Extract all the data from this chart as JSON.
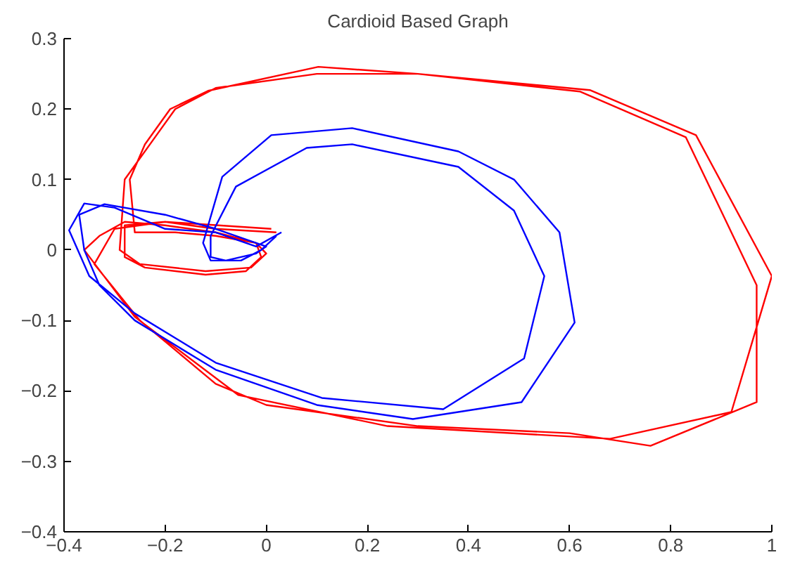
{
  "chart_data": {
    "type": "line",
    "title": "Cardioid Based Graph",
    "xlim": [
      -0.4,
      1
    ],
    "ylim": [
      -0.4,
      0.3
    ],
    "xticks": [
      -0.4,
      -0.2,
      0,
      0.2,
      0.4,
      0.6,
      0.8,
      1
    ],
    "yticks": [
      -0.4,
      -0.3,
      -0.2,
      -0.1,
      0,
      0.1,
      0.2,
      0.3
    ],
    "grid": false,
    "marker": "none",
    "line_style": "solid",
    "series": [
      {
        "color": "#ff0000",
        "x": [
          0.02,
          -0.1,
          -0.2,
          -0.28,
          -0.28,
          -0.24,
          -0.12,
          -0.04,
          -0.01,
          -0.02,
          -0.1,
          -0.18,
          -0.26,
          -0.27,
          -0.24,
          -0.19,
          -0.115,
          0.103,
          0.3,
          0.64,
          0.85,
          1.0,
          0.92,
          0.68,
          0.24,
          -0.055,
          -0.26,
          -0.36,
          -0.33,
          -0.28,
          -0.2,
          -0.1,
          -0.02,
          0,
          -0.03,
          -0.12,
          -0.25,
          -0.29,
          -0.28,
          -0.22,
          -0.18,
          -0.1,
          0.1,
          0.3,
          0.62,
          0.83,
          0.97,
          0.97,
          0.76,
          0.6,
          0.3,
          0,
          -0.1,
          -0.25,
          -0.34,
          -0.3,
          -0.2,
          0.01
        ],
        "values": [
          0.025,
          0.03,
          0.04,
          0.035,
          -0.01,
          -0.025,
          -0.035,
          -0.03,
          -0.01,
          0.01,
          0.02,
          0.025,
          0.025,
          0.1,
          0.15,
          0.2,
          0.226,
          0.26,
          0.25,
          0.227,
          0.163,
          -0.037,
          -0.23,
          -0.268,
          -0.25,
          -0.206,
          -0.095,
          0,
          0.02,
          0.04,
          0.035,
          0.025,
          0.01,
          -0.005,
          -0.025,
          -0.03,
          -0.02,
          0,
          0.1,
          0.16,
          0.2,
          0.23,
          0.25,
          0.25,
          0.225,
          0.16,
          -0.05,
          -0.216,
          -0.278,
          -0.26,
          -0.25,
          -0.22,
          -0.19,
          -0.1,
          -0.02,
          0.03,
          0.04,
          0.03
        ]
      },
      {
        "color": "#0000ff",
        "x": [
          0.03,
          -0.02,
          -0.1,
          -0.2,
          -0.3,
          -0.36,
          -0.39,
          -0.35,
          -0.26,
          -0.1,
          0.11,
          0.35,
          0.51,
          0.55,
          0.49,
          0.38,
          0.17,
          0.08,
          -0.06,
          -0.11,
          -0.11,
          -0.08,
          -0.02,
          0,
          -0.1,
          -0.2,
          -0.32,
          -0.37,
          -0.36,
          -0.33,
          -0.26,
          -0.1,
          0.1,
          0.29,
          0.505,
          0.61,
          0.58,
          0.49,
          0.38,
          0.17,
          0.01,
          -0.087,
          -0.125,
          -0.11,
          -0.05,
          -0.01,
          0.02
        ],
        "values": [
          0.025,
          0.005,
          0.025,
          0.03,
          0.06,
          0.066,
          0.028,
          -0.037,
          -0.09,
          -0.16,
          -0.21,
          -0.226,
          -0.154,
          -0.037,
          0.056,
          0.118,
          0.15,
          0.145,
          0.09,
          0.02,
          -0.01,
          -0.015,
          -0.005,
          0.005,
          0.03,
          0.05,
          0.065,
          0.05,
          0,
          -0.05,
          -0.1,
          -0.17,
          -0.22,
          -0.24,
          -0.216,
          -0.103,
          0.025,
          0.1,
          0.14,
          0.173,
          0.163,
          0.104,
          0.01,
          -0.015,
          -0.015,
          0,
          0.02
        ]
      }
    ]
  }
}
